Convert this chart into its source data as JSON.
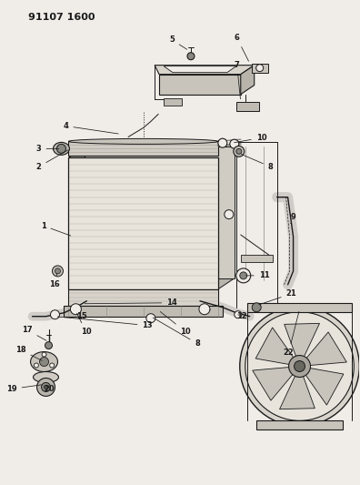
{
  "title_code": "91107 1600",
  "bg": "#f0ede8",
  "lc": "#1a1a1a",
  "fig_w": 3.96,
  "fig_h": 5.33,
  "dpi": 100
}
